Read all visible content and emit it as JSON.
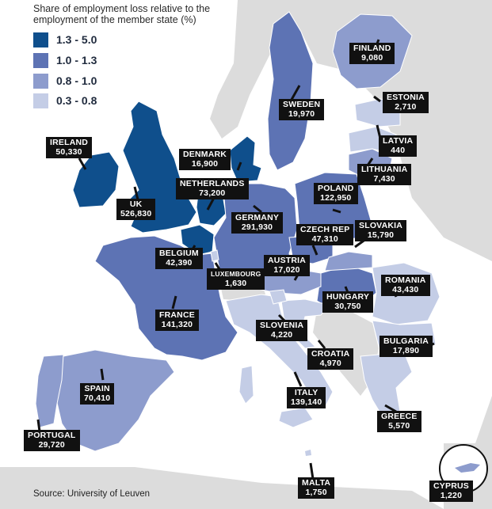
{
  "legend": {
    "title": "Share of employment loss relative to the employment of the member state (%)",
    "items": [
      {
        "label": "1.3 - 5.0",
        "color": "#0f4f8c"
      },
      {
        "label": "1.0 - 1.3",
        "color": "#5d73b4"
      },
      {
        "label": "0.8 - 1.0",
        "color": "#8d9ccd"
      },
      {
        "label": "0.3 - 0.8",
        "color": "#c4cde6"
      }
    ]
  },
  "countries": [
    {
      "name": "IRELAND",
      "value": "50,330"
    },
    {
      "name": "UK",
      "value": "526,830"
    },
    {
      "name": "DENMARK",
      "value": "16,900"
    },
    {
      "name": "NETHERLANDS",
      "value": "73,200"
    },
    {
      "name": "SWEDEN",
      "value": "19,970"
    },
    {
      "name": "FINLAND",
      "value": "9,080"
    },
    {
      "name": "ESTONIA",
      "value": "2,710"
    },
    {
      "name": "LATVIA",
      "value": "440"
    },
    {
      "name": "LITHUANIA",
      "value": "7,430"
    },
    {
      "name": "POLAND",
      "value": "122,950"
    },
    {
      "name": "GERMANY",
      "value": "291,930"
    },
    {
      "name": "CZECH REP",
      "value": "47,310"
    },
    {
      "name": "SLOVAKIA",
      "value": "15,790"
    },
    {
      "name": "BELGIUM",
      "value": "42,390"
    },
    {
      "name": "LUXEMBOURG",
      "value": "1,630"
    },
    {
      "name": "AUSTRIA",
      "value": "17,020"
    },
    {
      "name": "HUNGARY",
      "value": "30,750"
    },
    {
      "name": "ROMANIA",
      "value": "43,430"
    },
    {
      "name": "FRANCE",
      "value": "141,320"
    },
    {
      "name": "SLOVENIA",
      "value": "4,220"
    },
    {
      "name": "BULGARIA",
      "value": "17,890"
    },
    {
      "name": "CROATIA",
      "value": "4,970"
    },
    {
      "name": "SPAIN",
      "value": "70,410"
    },
    {
      "name": "ITALY",
      "value": "139,140"
    },
    {
      "name": "GREECE",
      "value": "5,570"
    },
    {
      "name": "PORTUGAL",
      "value": "29,720"
    },
    {
      "name": "MALTA",
      "value": "1,750"
    },
    {
      "name": "CYPRUS",
      "value": "1,220"
    }
  ],
  "source": "Source: University of Leuven",
  "colors": {
    "sea": "#ffffff",
    "non_eu": "#dcdcdc",
    "border": "#ffffff",
    "callout_bg": "#111111"
  }
}
